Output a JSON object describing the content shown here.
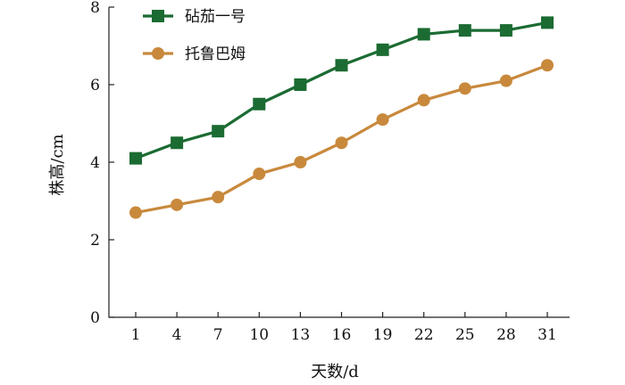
{
  "chart_data": {
    "type": "line",
    "title": "",
    "xlabel": "天数/d",
    "ylabel": "株高/cm",
    "x": [
      1,
      4,
      7,
      10,
      13,
      16,
      19,
      22,
      25,
      28,
      31
    ],
    "x_tick_labels": [
      "1",
      "4",
      "7",
      "10",
      "13",
      "16",
      "19",
      "22",
      "25",
      "28",
      "31"
    ],
    "ylim": [
      0,
      8
    ],
    "y_ticks": [
      0,
      2,
      4,
      6,
      8
    ],
    "grid": false,
    "legend_position": "top-left",
    "series": [
      {
        "name": "砧茄一号",
        "color": "#1b6b32",
        "marker": "square",
        "values": [
          4.1,
          4.5,
          4.8,
          5.5,
          6.0,
          6.5,
          6.9,
          7.3,
          7.4,
          7.4,
          7.6
        ]
      },
      {
        "name": "托鲁巴姆",
        "color": "#c8893c",
        "marker": "circle",
        "values": [
          2.7,
          2.9,
          3.1,
          3.7,
          4.0,
          4.5,
          5.1,
          5.6,
          5.9,
          6.1,
          6.5
        ]
      }
    ]
  }
}
